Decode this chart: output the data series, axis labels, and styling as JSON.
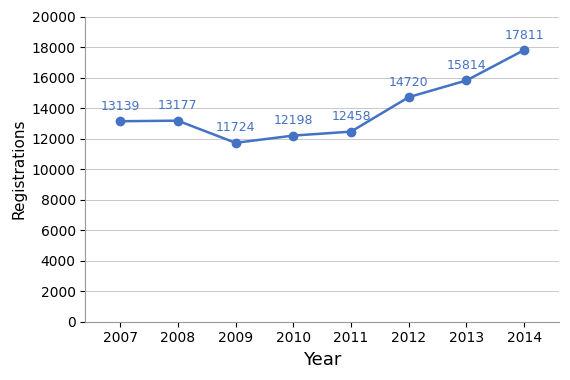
{
  "years": [
    2007,
    2008,
    2009,
    2010,
    2011,
    2012,
    2013,
    2014
  ],
  "values": [
    13139,
    13177,
    11724,
    12198,
    12458,
    14720,
    15814,
    17811
  ],
  "line_color": "#4472C4",
  "marker_color": "#4472C4",
  "marker_style": "o",
  "marker_size": 6,
  "line_width": 1.8,
  "xlabel": "Year",
  "ylabel": "Registrations",
  "xlabel_fontsize": 13,
  "ylabel_fontsize": 11,
  "tick_fontsize": 10,
  "annotation_fontsize": 9,
  "annotation_color": "#4472C4",
  "ylim": [
    0,
    20000
  ],
  "ytick_step": 2000,
  "background_color": "#ffffff",
  "grid_color": "#c8c8c8",
  "grid_linewidth": 0.7,
  "spine_color": "#999999"
}
